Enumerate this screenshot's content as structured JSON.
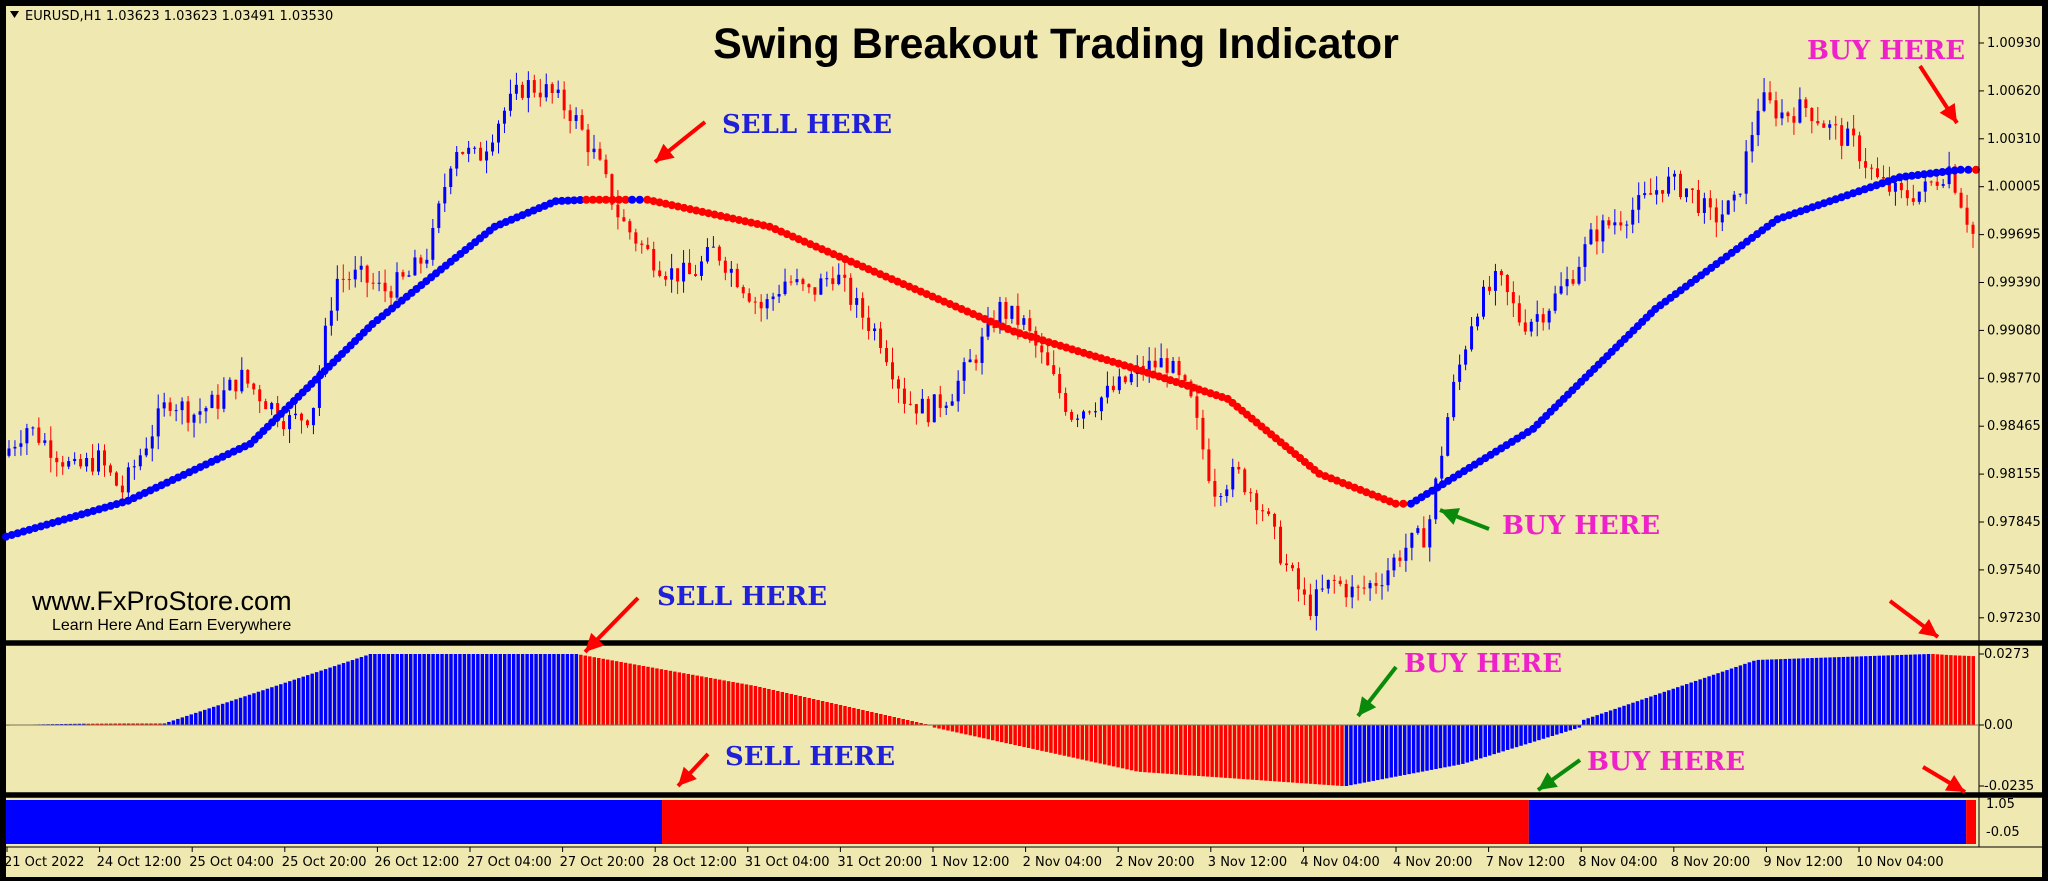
{
  "header": {
    "symbol_info": "EURUSD,H1  1.03623 1.03623 1.03491 1.03530",
    "title": "Swing Breakout Trading Indicator",
    "site": "www.FxProStore.com",
    "tagline": "Learn Here And Earn Everywhere"
  },
  "colors": {
    "background": "#efe8b0",
    "bull": "#0000ff",
    "bear": "#ff0000",
    "arrow_red": "#ff0000",
    "arrow_green": "#0a8a0a"
  },
  "annotations": [
    {
      "label": "SELL HERE",
      "style": "blue",
      "arrow": "red"
    },
    {
      "label": "BUY HERE",
      "style": "pink",
      "arrow": "green"
    },
    {
      "label": "BUY HERE",
      "style": "pink",
      "arrow": "red"
    },
    {
      "label": "SELL HERE",
      "style": "blue",
      "arrow": "red"
    },
    {
      "label": "BUY HERE",
      "style": "pink",
      "arrow": "green"
    },
    {
      "label": "SELL HERE",
      "style": "blue",
      "arrow": "red"
    },
    {
      "label": "BUY HERE",
      "style": "pink",
      "arrow": "green"
    }
  ],
  "chart_data": [
    {
      "type": "candlestick",
      "title": "Swing Breakout Trading Indicator",
      "symbol": "EURUSD",
      "timeframe": "H1",
      "ylim": [
        0.9723,
        1.0117
      ],
      "y_ticks": [
        "1.00930",
        "1.00620",
        "1.00310",
        "1.00005",
        "0.99695",
        "0.99390",
        "0.99080",
        "0.98770",
        "0.98465",
        "0.98155",
        "0.97845",
        "0.97540",
        "0.97230"
      ],
      "x_ticks": [
        "21 Oct 2022",
        "24 Oct 12:00",
        "25 Oct 04:00",
        "25 Oct 20:00",
        "26 Oct 12:00",
        "27 Oct 04:00",
        "27 Oct 20:00",
        "28 Oct 12:00",
        "31 Oct 04:00",
        "31 Oct 20:00",
        "1 Nov 12:00",
        "2 Nov 04:00",
        "2 Nov 20:00",
        "3 Nov 12:00",
        "4 Nov 04:00",
        "4 Nov 20:00",
        "7 Nov 12:00",
        "8 Nov 04:00",
        "8 Nov 20:00",
        "9 Nov 12:00",
        "10 Nov 04:00"
      ],
      "price_path": [
        0.9842,
        0.9862,
        0.9848,
        0.9832,
        0.984,
        0.9818,
        0.985,
        0.988,
        0.987,
        0.9878,
        0.9895,
        0.988,
        0.9865,
        0.987,
        0.996,
        0.9962,
        0.9952,
        0.996,
        0.998,
        1.005,
        1.004,
        1.007,
        1.009,
        1.0085,
        1.007,
        1.004,
        1.0,
        0.998,
        0.9965,
        0.9962,
        0.998,
        0.996,
        0.994,
        0.996,
        0.995,
        0.9965,
        0.994,
        0.992,
        0.988,
        0.9872,
        0.9885,
        0.991,
        0.994,
        0.993,
        0.99,
        0.987,
        0.9878,
        0.9888,
        0.99,
        0.9905,
        0.988,
        0.982,
        0.983,
        0.981,
        0.977,
        0.974,
        0.9758,
        0.975,
        0.976,
        0.978,
        0.979,
        0.988,
        0.994,
        0.996,
        0.993,
        0.994,
        0.996,
        0.999,
        1.0,
        1.001,
        1.0025,
        1.002,
        1.0,
        1.001,
        1.008,
        1.007,
        1.0075,
        1.006,
        1.005,
        1.0025,
        1.0015,
        1.002,
        1.0035,
        0.999
      ],
      "indicator_line": [
        {
          "x": 0,
          "y": 0.9788,
          "color": "blue"
        },
        {
          "x": 8,
          "y": 0.9812,
          "color": "blue"
        },
        {
          "x": 16,
          "y": 0.985,
          "color": "blue"
        },
        {
          "x": 24,
          "y": 0.993,
          "color": "blue"
        },
        {
          "x": 32,
          "y": 0.9995,
          "color": "blue"
        },
        {
          "x": 36,
          "y": 1.0012,
          "color": "blue"
        },
        {
          "x": 38,
          "y": 1.0013,
          "color": "red"
        },
        {
          "x": 41,
          "y": 1.0013,
          "color": "blue"
        },
        {
          "x": 42,
          "y": 1.0013,
          "color": "red"
        },
        {
          "x": 50,
          "y": 0.9995,
          "color": "red"
        },
        {
          "x": 58,
          "y": 0.996,
          "color": "red"
        },
        {
          "x": 66,
          "y": 0.9925,
          "color": "red"
        },
        {
          "x": 74,
          "y": 0.99,
          "color": "red"
        },
        {
          "x": 80,
          "y": 0.988,
          "color": "red"
        },
        {
          "x": 86,
          "y": 0.983,
          "color": "red"
        },
        {
          "x": 91,
          "y": 0.981,
          "color": "red"
        },
        {
          "x": 92,
          "y": 0.981,
          "color": "blue"
        },
        {
          "x": 100,
          "y": 0.986,
          "color": "blue"
        },
        {
          "x": 108,
          "y": 0.994,
          "color": "blue"
        },
        {
          "x": 116,
          "y": 1.0,
          "color": "blue"
        },
        {
          "x": 124,
          "y": 1.0028,
          "color": "blue"
        },
        {
          "x": 128,
          "y": 1.0033,
          "color": "blue"
        },
        {
          "x": 129,
          "y": 1.0033,
          "color": "red"
        }
      ]
    },
    {
      "type": "bar",
      "subtype": "histogram",
      "ylim": [
        -0.0235,
        0.0273
      ],
      "y_ticks": [
        "0.0273",
        "0.00",
        "-0.0235"
      ],
      "segments": [
        {
          "start": 0.0,
          "end": 0.04,
          "color": "blue",
          "from": 0.0,
          "peak": 0.0003,
          "to": 0.0005
        },
        {
          "start": 0.04,
          "end": 0.08,
          "color": "red",
          "from": 0.0005,
          "peak": 0.0006,
          "to": 0.0006
        },
        {
          "start": 0.08,
          "end": 0.29,
          "color": "blue",
          "from": 0.0006,
          "peak": 0.0273,
          "to": 0.0273
        },
        {
          "start": 0.29,
          "end": 0.47,
          "color": "red",
          "from": 0.027,
          "peak": 0.015,
          "to": 0.0
        },
        {
          "start": 0.47,
          "end": 0.68,
          "color": "red",
          "from": -0.001,
          "peak": -0.018,
          "to": -0.0235
        },
        {
          "start": 0.68,
          "end": 0.8,
          "color": "blue",
          "from": -0.0235,
          "peak": -0.015,
          "to": -0.001
        },
        {
          "start": 0.8,
          "end": 0.977,
          "color": "blue",
          "from": 0.002,
          "peak": 0.025,
          "to": 0.0273
        },
        {
          "start": 0.977,
          "end": 1.0,
          "color": "red",
          "from": 0.0273,
          "peak": 0.0268,
          "to": 0.0265
        }
      ]
    },
    {
      "type": "bar",
      "subtype": "state-bar",
      "ylim": [
        -0.05,
        1.05
      ],
      "y_ticks": [
        "1.05",
        "-0.05"
      ],
      "segments": [
        {
          "start": 0.0,
          "end": 0.333,
          "color": "blue"
        },
        {
          "start": 0.333,
          "end": 0.773,
          "color": "red"
        },
        {
          "start": 0.773,
          "end": 0.995,
          "color": "blue"
        },
        {
          "start": 0.995,
          "end": 1.0,
          "color": "red"
        }
      ]
    }
  ]
}
